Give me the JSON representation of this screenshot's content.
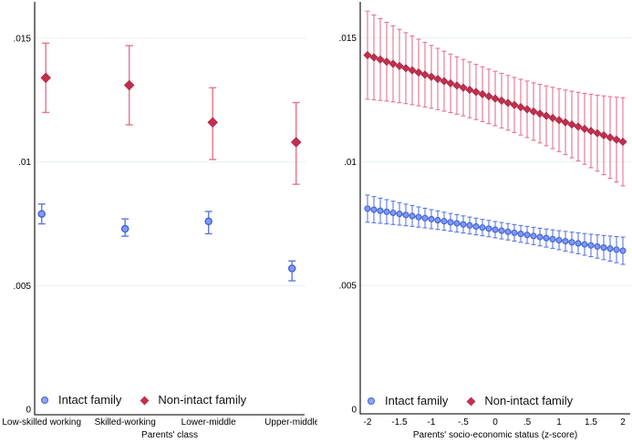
{
  "colors": {
    "intact_fill": "#7e9aef",
    "intact_stroke": "#3f5ed8",
    "intact_error": "#5d78e2",
    "nonintact_fill": "#c22f4e",
    "nonintact_stroke": "#ad2342",
    "nonintact_error": "#e2758a",
    "gridline": "#e8f1f3",
    "axis": "#2b2b2b",
    "background": "#ffffff"
  },
  "legend": {
    "intact_label": "Intact family",
    "nonintact_label": "Non-intact family"
  },
  "chart_data": [
    {
      "id": "left",
      "type": "scatter",
      "title": "",
      "xlabel": "Parents' class",
      "ylabel": "",
      "ylim": [
        0,
        0.0165
      ],
      "grid": true,
      "legend_position": "bottom-inside",
      "yticks": [
        0,
        0.005,
        0.01,
        0.015
      ],
      "ytick_labels": [
        "0",
        ".005",
        ".01",
        ".015"
      ],
      "categories": [
        "Low-skilled working",
        "Skilled-working",
        "Lower-middle",
        "Upper-middle"
      ],
      "series": [
        {
          "name": "Intact family",
          "marker": "circle",
          "color_key": "intact",
          "values": [
            0.0079,
            0.0073,
            0.0076,
            0.0057
          ],
          "ci_low": [
            0.0075,
            0.007,
            0.0071,
            0.0052
          ],
          "ci_high": [
            0.0083,
            0.0077,
            0.008,
            0.006
          ]
        },
        {
          "name": "Non-intact family",
          "marker": "diamond",
          "color_key": "nonintact",
          "values": [
            0.0134,
            0.0131,
            0.0116,
            0.0108
          ],
          "ci_low": [
            0.012,
            0.0115,
            0.0101,
            0.0091
          ],
          "ci_high": [
            0.0148,
            0.0147,
            0.013,
            0.0124
          ]
        }
      ]
    },
    {
      "id": "right",
      "type": "scatter",
      "title": "",
      "xlabel": "Parents' socio-economic status (z-score)",
      "ylabel": "",
      "ylim": [
        0,
        0.0165
      ],
      "xlim": [
        -2.1,
        2.1
      ],
      "grid": true,
      "legend_position": "bottom-inside",
      "yticks": [
        0,
        0.005,
        0.01,
        0.015
      ],
      "ytick_labels": [
        "0",
        ".005",
        ".01",
        ".015"
      ],
      "xticks": [
        -2,
        -1.5,
        -1,
        -0.5,
        0,
        0.5,
        1,
        1.5,
        2
      ],
      "xtick_labels": [
        "-2",
        "-1.5",
        "-1",
        "-.5",
        "0",
        ".5",
        "1",
        "1.5",
        "2"
      ],
      "x": [
        -2,
        -1.9,
        -1.8,
        -1.7,
        -1.6,
        -1.5,
        -1.4,
        -1.3,
        -1.2,
        -1.1,
        -1,
        -0.9,
        -0.8,
        -0.7,
        -0.6,
        -0.5,
        -0.4,
        -0.3,
        -0.2,
        -0.1,
        0,
        0.1,
        0.2,
        0.3,
        0.4,
        0.5,
        0.6,
        0.7,
        0.8,
        0.9,
        1,
        1.1,
        1.2,
        1.3,
        1.4,
        1.5,
        1.6,
        1.7,
        1.8,
        1.9,
        2
      ],
      "series": [
        {
          "name": "Intact family",
          "marker": "circle",
          "color_key": "intact",
          "values": [
            0.0081,
            0.008058,
            0.008015,
            0.007973,
            0.00793,
            0.007888,
            0.007845,
            0.007803,
            0.00776,
            0.007718,
            0.007675,
            0.007633,
            0.00759,
            0.007548,
            0.007505,
            0.007463,
            0.00742,
            0.007378,
            0.007335,
            0.007293,
            0.00725,
            0.007208,
            0.007165,
            0.007123,
            0.00708,
            0.007038,
            0.006995,
            0.006953,
            0.00691,
            0.006868,
            0.006825,
            0.006783,
            0.00674,
            0.006698,
            0.006655,
            0.006613,
            0.00657,
            0.006528,
            0.006485,
            0.006443,
            0.0064
          ],
          "ci_half": [
            0.00055,
            0.000529,
            0.000508,
            0.000489,
            0.000471,
            0.000454,
            0.000438,
            0.000423,
            0.000409,
            0.000397,
            0.000385,
            0.000375,
            0.000365,
            0.000357,
            0.00035,
            0.000344,
            0.000339,
            0.000335,
            0.000332,
            0.000331,
            0.00033,
            0.000331,
            0.000332,
            0.000335,
            0.000339,
            0.000344,
            0.00035,
            0.000357,
            0.000365,
            0.000375,
            0.000385,
            0.000397,
            0.000409,
            0.000423,
            0.000438,
            0.000454,
            0.000471,
            0.000489,
            0.000508,
            0.000529,
            0.00055
          ]
        },
        {
          "name": "Non-intact family",
          "marker": "diamond",
          "color_key": "nonintact",
          "values": [
            0.0143,
            0.014213,
            0.014125,
            0.014038,
            0.01395,
            0.013863,
            0.013775,
            0.013688,
            0.0136,
            0.013513,
            0.013425,
            0.013338,
            0.01325,
            0.013163,
            0.013075,
            0.012988,
            0.0129,
            0.012813,
            0.012725,
            0.012638,
            0.01255,
            0.012463,
            0.012375,
            0.012288,
            0.0122,
            0.012113,
            0.012025,
            0.011938,
            0.01185,
            0.011763,
            0.011675,
            0.011588,
            0.0115,
            0.011413,
            0.011325,
            0.011238,
            0.01115,
            0.011063,
            0.010975,
            0.010888,
            0.0108
          ],
          "ci_half": [
            0.00178,
            0.001714,
            0.001651,
            0.001591,
            0.001535,
            0.001483,
            0.001433,
            0.001387,
            0.001345,
            0.001306,
            0.00127,
            0.001238,
            0.001209,
            0.001183,
            0.001161,
            0.001143,
            0.001127,
            0.001115,
            0.001107,
            0.001102,
            0.0011,
            0.001102,
            0.001107,
            0.001115,
            0.001127,
            0.001143,
            0.001161,
            0.001183,
            0.001209,
            0.001238,
            0.00127,
            0.001306,
            0.001345,
            0.001387,
            0.001433,
            0.001483,
            0.001535,
            0.001591,
            0.001651,
            0.001714,
            0.00178
          ]
        }
      ]
    }
  ]
}
